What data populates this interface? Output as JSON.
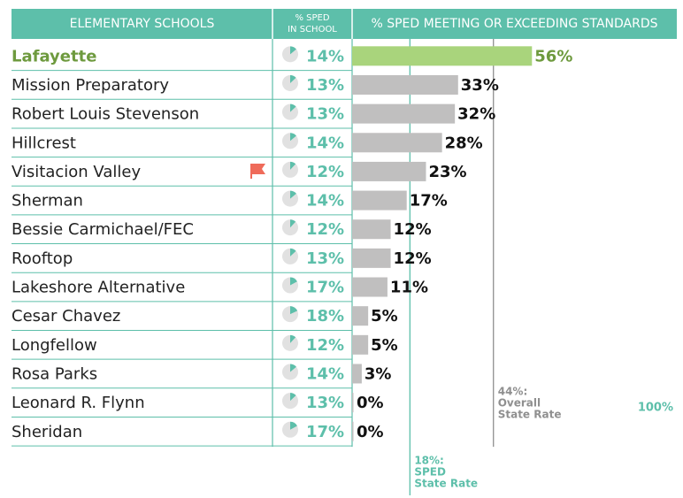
{
  "chart_data": {
    "type": "bar",
    "orientation": "horizontal",
    "headers": [
      "ELEMENTARY SCHOOLS",
      "% SPED IN SCHOOL",
      "% SPED MEETING OR EXCEEDING STANDARDS"
    ],
    "categories": [
      "Lafayette",
      "Mission Preparatory",
      "Robert Louis Stevenson",
      "Hillcrest",
      "Visitacion Valley",
      "Sherman",
      "Bessie Carmichael/FEC",
      "Rooftop",
      "Lakeshore Alternative",
      "Cesar Chavez",
      "Longfellow",
      "Rosa Parks",
      "Leonard R. Flynn",
      "Sheridan"
    ],
    "sped_in_school": [
      14,
      13,
      13,
      14,
      12,
      14,
      12,
      13,
      17,
      18,
      12,
      14,
      13,
      17
    ],
    "sped_in_school_labels": [
      "14%",
      "13%",
      "13%",
      "14%",
      "12%",
      "14%",
      "12%",
      "13%",
      "17%",
      "18%",
      "12%",
      "14%",
      "13%",
      "17%"
    ],
    "values": [
      56,
      33,
      32,
      28,
      23,
      17,
      12,
      12,
      11,
      5,
      5,
      3,
      0,
      0
    ],
    "value_labels": [
      "56%",
      "33%",
      "32%",
      "28%",
      "23%",
      "17%",
      "12%",
      "12%",
      "11%",
      "5%",
      "5%",
      "3%",
      "0%",
      "0%"
    ],
    "color": "#c0bfbf",
    "colors": [
      "#a9d47c",
      "#c0bfbf",
      "#c0bfbf",
      "#c0bfbf",
      "#c0bfbf",
      "#c0bfbf",
      "#c0bfbf",
      "#c0bfbf",
      "#c0bfbf",
      "#c0bfbf",
      "#c0bfbf",
      "#c0bfbf",
      "#c0bfbf",
      "#c0bfbf"
    ],
    "highlight_text_color": "#6e9a3e",
    "accent_color": "#5dbfaa",
    "xlim": [
      0,
      100
    ],
    "xticks": [
      {
        "value": 100,
        "label": "100%"
      }
    ],
    "reference_lines": [
      {
        "value": 18,
        "label": [
          "18%:",
          "SPED",
          "State Rate"
        ],
        "color": "#5dbfaa"
      },
      {
        "value": 44,
        "label": [
          "44%:",
          "Overall",
          "State Rate"
        ],
        "color": "#8f8f8f"
      }
    ]
  }
}
